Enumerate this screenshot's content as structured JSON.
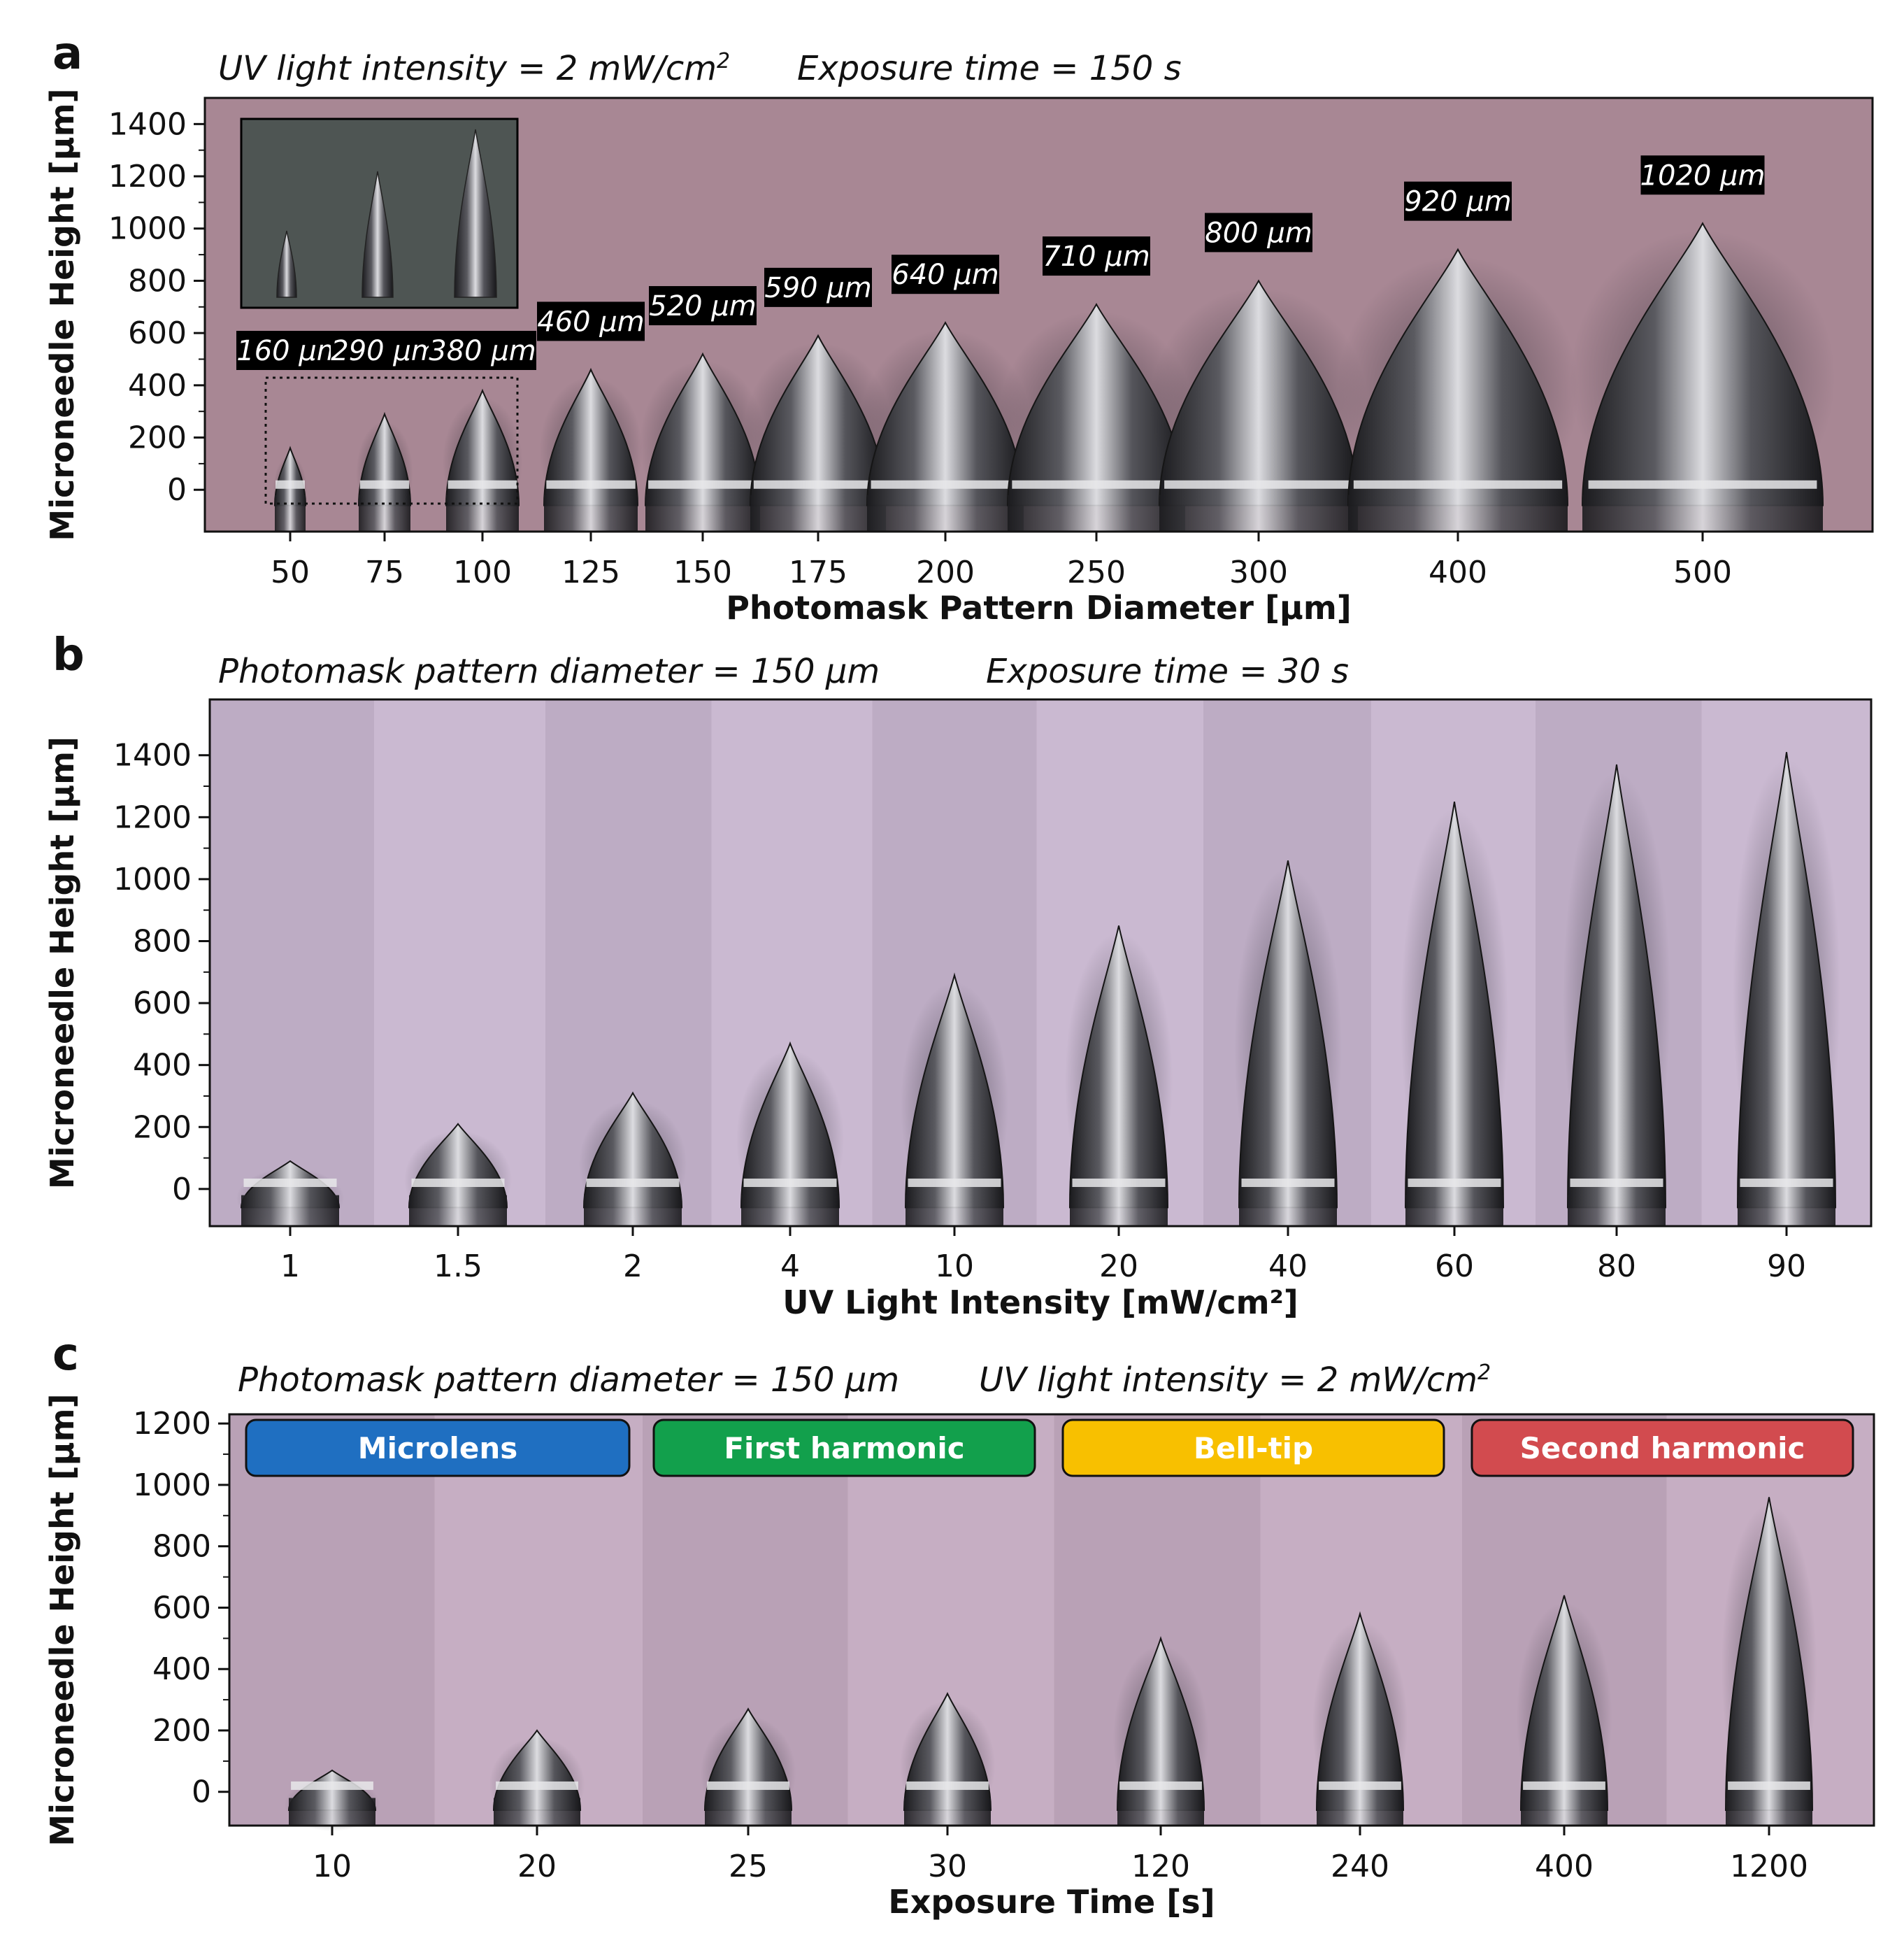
{
  "panels": [
    {
      "letter": "a",
      "conditions": [
        {
          "text": "UV light intensity = 2 mW/cm",
          "sup": "2"
        },
        {
          "text": "Exposure time = 150 s",
          "sup": ""
        }
      ],
      "bg": "#a88794",
      "ylabel": "Microneedle Height [µm]",
      "xlabel": "Photomask Pattern Diameter [µm]",
      "ylim": [
        -160,
        1500
      ],
      "yticks": [
        0,
        200,
        400,
        600,
        800,
        1000,
        1200,
        1400
      ],
      "xticks": [
        "50",
        "75",
        "100",
        "125",
        "150",
        "175",
        "200",
        "250",
        "300",
        "400",
        "500"
      ],
      "heights": [
        160,
        290,
        380,
        460,
        520,
        590,
        640,
        710,
        800,
        920,
        1020
      ],
      "height_labels": [
        "160 µm",
        "290 µm",
        "380 µm",
        "460 µm",
        "520 µm",
        "590 µm",
        "640 µm",
        "710 µm",
        "800 µm",
        "920 µm",
        "1020 µm"
      ]
    },
    {
      "letter": "b",
      "conditions": [
        {
          "text": "Photomask pattern diameter = 150 µm",
          "sup": ""
        },
        {
          "text": "Exposure time = 30 s",
          "sup": ""
        }
      ],
      "bg": "#c8b6cf",
      "ylabel": "Microneedle Height [µm]",
      "xlabel": "UV Light Intensity [mW/cm²]",
      "ylim": [
        -120,
        1580
      ],
      "yticks": [
        0,
        200,
        400,
        600,
        800,
        1000,
        1200,
        1400
      ],
      "xticks": [
        "1",
        "1.5",
        "2",
        "4",
        "10",
        "20",
        "40",
        "60",
        "80",
        "90"
      ],
      "heights": [
        90,
        210,
        310,
        470,
        690,
        850,
        1060,
        1250,
        1370,
        1410
      ]
    },
    {
      "letter": "c",
      "conditions": [
        {
          "text": "Photomask pattern diameter = 150 µm",
          "sup": ""
        },
        {
          "text": "UV light intensity = 2 mW/cm",
          "sup": "2"
        }
      ],
      "bg": "#c3aac0",
      "ylabel": "Microneedle Height [µm]",
      "xlabel": "Exposure Time [s]",
      "ylim": [
        -110,
        1230
      ],
      "yticks": [
        0,
        200,
        400,
        600,
        800,
        1000,
        1200
      ],
      "xticks": [
        "10",
        "20",
        "25",
        "30",
        "120",
        "240",
        "400",
        "1200"
      ],
      "heights": [
        70,
        200,
        270,
        320,
        500,
        580,
        640,
        960
      ],
      "stages": [
        {
          "label": "Microlens",
          "color": "#1f6fc1"
        },
        {
          "label": "First harmonic",
          "color": "#12a04c"
        },
        {
          "label": "Bell-tip",
          "color": "#f8c000"
        },
        {
          "label": "Second harmonic",
          "color": "#d24b4f"
        }
      ]
    }
  ],
  "chart_data": [
    {
      "type": "scatter",
      "title": "",
      "xlabel": "Photomask Pattern Diameter [µm]",
      "ylabel": "Microneedle Height [µm]",
      "x": [
        50,
        75,
        100,
        125,
        150,
        175,
        200,
        250,
        300,
        400,
        500
      ],
      "y": [
        160,
        290,
        380,
        460,
        520,
        590,
        640,
        710,
        800,
        920,
        1020
      ],
      "ylim": [
        -160,
        1500
      ]
    },
    {
      "type": "scatter",
      "title": "",
      "xlabel": "UV Light Intensity [mW/cm²]",
      "ylabel": "Microneedle Height [µm]",
      "x": [
        1,
        1.5,
        2,
        4,
        10,
        20,
        40,
        60,
        80,
        90
      ],
      "y": [
        90,
        210,
        310,
        470,
        690,
        850,
        1060,
        1250,
        1370,
        1410
      ],
      "ylim": [
        -120,
        1580
      ]
    },
    {
      "type": "scatter",
      "title": "",
      "xlabel": "Exposure Time [s]",
      "ylabel": "Microneedle Height [µm]",
      "x": [
        10,
        20,
        25,
        30,
        120,
        240,
        400,
        1200
      ],
      "y": [
        70,
        200,
        270,
        320,
        500,
        580,
        640,
        960
      ],
      "ylim": [
        -110,
        1230
      ]
    }
  ]
}
